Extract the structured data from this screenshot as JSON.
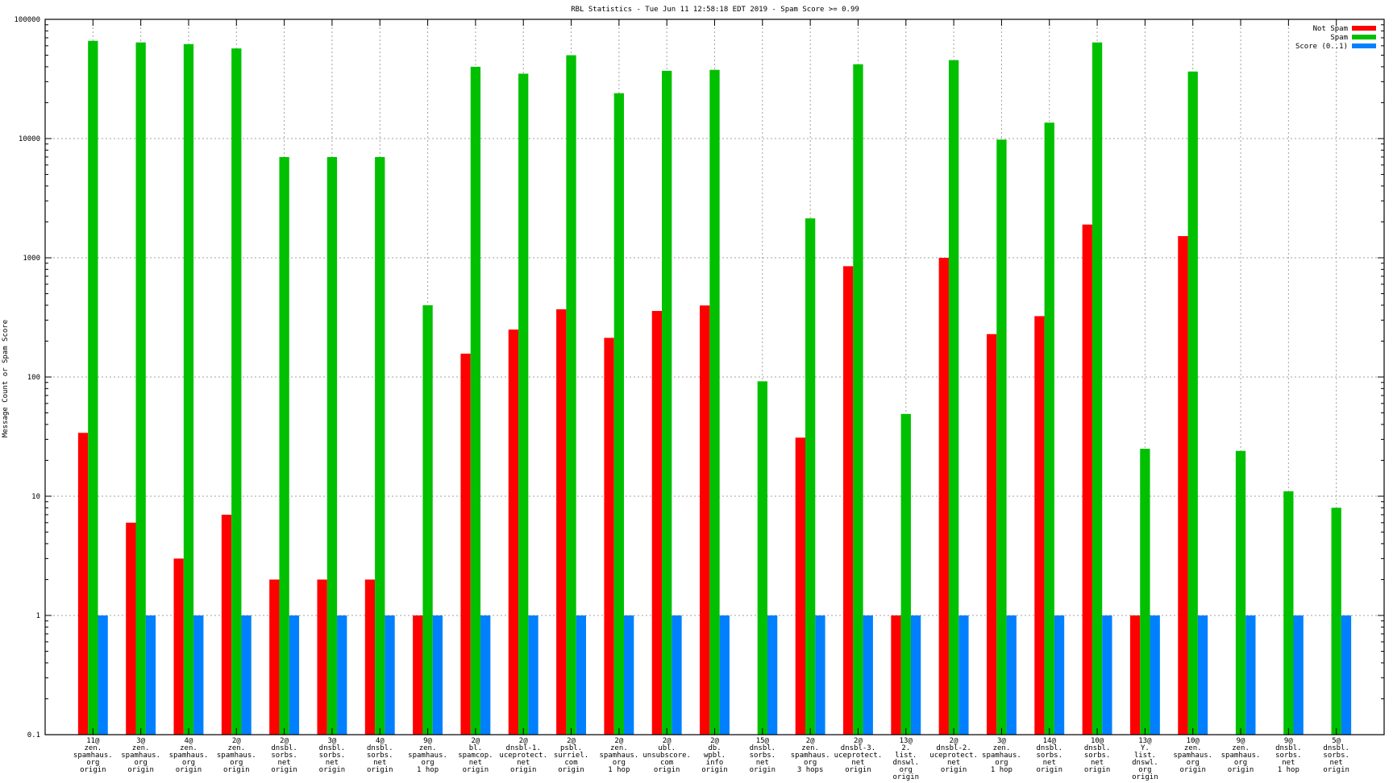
{
  "chart_data": {
    "type": "bar",
    "title": "RBL Statistics - Tue Jun 11 12:58:18 EDT 2019 - Spam Score >= 0.99",
    "xlabel": "",
    "ylabel": "Message Count or Spam Score",
    "yscale": "log",
    "ylim": [
      0.1,
      100000
    ],
    "yticks": [
      "0.1",
      "1",
      "10",
      "100",
      "1000",
      "10000",
      "100000"
    ],
    "grid": true,
    "legend_position": "top-right",
    "categories": [
      [
        "11@",
        "zen.",
        "spamhaus.",
        "org",
        "origin"
      ],
      [
        "3@",
        "zen.",
        "spamhaus.",
        "org",
        "origin"
      ],
      [
        "4@",
        "zen.",
        "spamhaus.",
        "org",
        "origin"
      ],
      [
        "2@",
        "zen.",
        "spamhaus.",
        "org",
        "origin"
      ],
      [
        "2@",
        "dnsbl.",
        "sorbs.",
        "net",
        "origin"
      ],
      [
        "3@",
        "dnsbl.",
        "sorbs.",
        "net",
        "origin"
      ],
      [
        "4@",
        "dnsbl.",
        "sorbs.",
        "net",
        "origin"
      ],
      [
        "9@",
        "zen.",
        "spamhaus.",
        "org",
        "1 hop"
      ],
      [
        "2@",
        "bl.",
        "spamcop.",
        "net",
        "origin"
      ],
      [
        "2@",
        "dnsbl-1.",
        "uceprotect.",
        "net",
        "origin"
      ],
      [
        "2@",
        "psbl.",
        "surriel.",
        "com",
        "origin"
      ],
      [
        "2@",
        "zen.",
        "spamhaus.",
        "org",
        "1 hop"
      ],
      [
        "2@",
        "ubl.",
        "unsubscore.",
        "com",
        "origin"
      ],
      [
        "2@",
        "db.",
        "wpbl.",
        "info",
        "origin"
      ],
      [
        "15@",
        "dnsbl.",
        "sorbs.",
        "net",
        "origin"
      ],
      [
        "2@",
        "zen.",
        "spamhaus.",
        "org",
        "3 hops"
      ],
      [
        "2@",
        "dnsbl-3.",
        "uceprotect.",
        "net",
        "origin"
      ],
      [
        "13@",
        "2.",
        "list.",
        "dnswl.",
        "org",
        "origin"
      ],
      [
        "2@",
        "dnsbl-2.",
        "uceprotect.",
        "net",
        "origin"
      ],
      [
        "3@",
        "zen.",
        "spamhaus.",
        "org",
        "1 hop"
      ],
      [
        "14@",
        "dnsbl.",
        "sorbs.",
        "net",
        "origin"
      ],
      [
        "10@",
        "dnsbl.",
        "sorbs.",
        "net",
        "origin"
      ],
      [
        "13@",
        "Y.",
        "list.",
        "dnswl.",
        "org",
        "origin"
      ],
      [
        "10@",
        "zen.",
        "spamhaus.",
        "org",
        "origin"
      ],
      [
        "9@",
        "zen.",
        "spamhaus.",
        "org",
        "origin"
      ],
      [
        "9@",
        "dnsbl.",
        "sorbs.",
        "net",
        "1 hop"
      ],
      [
        "5@",
        "dnsbl.",
        "sorbs.",
        "net",
        "origin"
      ]
    ],
    "series": [
      {
        "name": "Not Spam",
        "color": "#ff0000",
        "values": [
          34,
          6,
          3,
          7,
          2,
          2,
          2,
          1,
          157,
          250,
          370,
          213,
          358,
          398,
          null,
          31,
          850,
          1,
          1000,
          229,
          324,
          1900,
          1,
          1520,
          null,
          null,
          null
        ]
      },
      {
        "name": "Spam",
        "color": "#00c000",
        "values": [
          66000,
          64000,
          62000,
          57000,
          7000,
          7000,
          7000,
          400,
          40000,
          35000,
          50000,
          24000,
          37000,
          37700,
          92,
          2140,
          42000,
          49,
          45500,
          9800,
          13600,
          64000,
          25,
          36500,
          24,
          11,
          8
        ]
      },
      {
        "name": "Score (0..1)",
        "color": "#0080ff",
        "values": [
          1,
          1,
          1,
          1,
          1,
          1,
          1,
          1,
          1,
          1,
          1,
          1,
          1,
          1,
          1,
          1,
          1,
          1,
          1,
          1,
          1,
          1,
          1,
          1,
          1,
          1,
          1
        ]
      }
    ]
  }
}
